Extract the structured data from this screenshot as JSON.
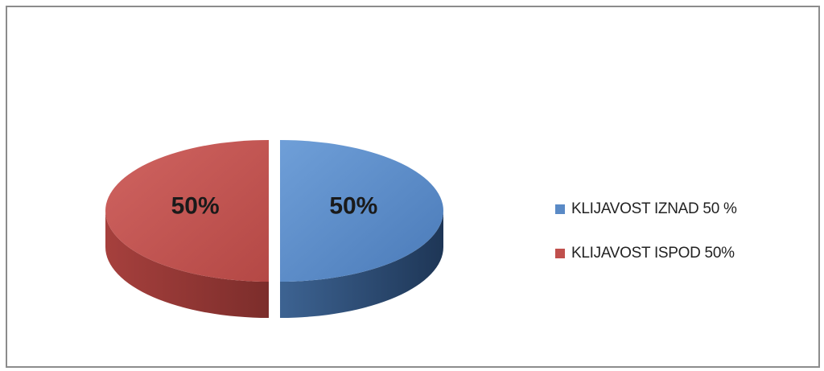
{
  "chart_data": {
    "type": "pie",
    "title": "",
    "style": "3d-exploded",
    "legend_position": "right",
    "slices": [
      {
        "label": "KLIJAVOST IZNAD 50 %",
        "value": 50,
        "display": "50%",
        "color": "#5a8ac6",
        "side_color": "#2e4f75"
      },
      {
        "label": "KLIJAVOST ISPOD 50%",
        "value": 50,
        "display": "50%",
        "color": "#c0504d",
        "side_color": "#8a3230"
      }
    ]
  }
}
